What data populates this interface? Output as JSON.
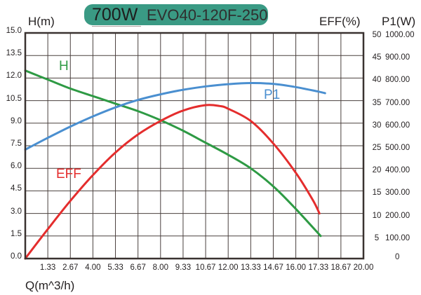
{
  "header": {
    "power": "700W",
    "model": "EVO40-120F-250",
    "pill_color": "#3a9a84"
  },
  "axes": {
    "left_title": "H(m)",
    "right_eff_title": "EFF(%)",
    "right_p1_title": "P1(W)",
    "x_title": "Q(m^3/h)"
  },
  "series_labels": {
    "H": "H",
    "EFF": "EFF",
    "P1": "P1"
  },
  "chart_data": {
    "type": "line",
    "title": "700W EVO40-120F-250",
    "xlabel": "Q(m^3/h)",
    "ylabel": "H(m)",
    "ylabel_right": [
      "EFF(%)",
      "P1(W)"
    ],
    "grid": true,
    "xlim": [
      0,
      20
    ],
    "ylim": [
      0,
      15
    ],
    "ylim_eff": [
      0,
      50
    ],
    "ylim_p1": [
      0,
      1000
    ],
    "x_ticks": [
      "1.33",
      "2.67",
      "4.00",
      "5.33",
      "6.67",
      "8.00",
      "9.33",
      "10.67",
      "12.00",
      "13.33",
      "14.67",
      "16.00",
      "17.33",
      "18.67",
      "20.00"
    ],
    "y_ticks": [
      "0.0",
      "1.5",
      "3.0",
      "4.5",
      "6.0",
      "7.5",
      "9.0",
      "10.5",
      "12.0",
      "13.5",
      "15.0"
    ],
    "eff_ticks": [
      "5",
      "10",
      "15",
      "20",
      "25",
      "30",
      "35",
      "40",
      "45",
      "50"
    ],
    "p1_ticks": [
      "0",
      "100.00",
      "200.00",
      "300.00",
      "400.00",
      "500.00",
      "600.00",
      "700.00",
      "800.00",
      "900.00",
      "1000.00"
    ],
    "series": [
      {
        "name": "H",
        "axis": "H(m)",
        "color": "#2e9a44",
        "x": [
          0,
          1.33,
          2.67,
          4.0,
          5.33,
          6.67,
          8.0,
          9.33,
          10.67,
          12.0,
          13.33,
          14.67,
          16.0,
          17.47
        ],
        "values": [
          12.5,
          11.9,
          11.3,
          10.8,
          10.3,
          9.8,
          9.2,
          8.5,
          7.7,
          6.9,
          6.0,
          4.8,
          3.3,
          1.5
        ]
      },
      {
        "name": "P1",
        "axis": "P1(W)",
        "color": "#4a8fd0",
        "x": [
          0,
          1.33,
          2.67,
          4.0,
          5.33,
          6.67,
          8.0,
          9.33,
          10.67,
          12.0,
          13.33,
          14.67,
          16.0,
          17.33,
          17.73
        ],
        "values": [
          483,
          535,
          585,
          630,
          670,
          703,
          728,
          748,
          763,
          773,
          778,
          774,
          760,
          740,
          733
        ]
      },
      {
        "name": "EFF",
        "axis": "EFF(%)",
        "color": "#e42d2d",
        "x": [
          0,
          1.33,
          2.67,
          4.0,
          5.33,
          6.67,
          8.0,
          9.33,
          10.67,
          11.5,
          12.0,
          13.33,
          14.67,
          16.0,
          17.0,
          17.4
        ],
        "values": [
          0,
          6.5,
          12.8,
          18.5,
          23.5,
          27.5,
          30.5,
          32.8,
          34.0,
          33.8,
          33.2,
          30.5,
          25.5,
          19.0,
          13.0,
          10.0
        ]
      }
    ]
  }
}
